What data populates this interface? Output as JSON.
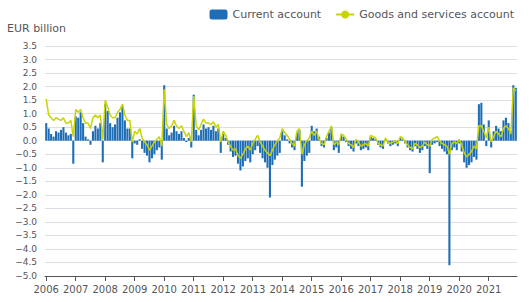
{
  "chart_data": {
    "type": "bar",
    "ylabel": "EUR billion",
    "categories": [
      "2006",
      null,
      null,
      null,
      null,
      null,
      null,
      null,
      null,
      null,
      null,
      null,
      "2007",
      null,
      null,
      null,
      null,
      null,
      null,
      null,
      null,
      null,
      null,
      null,
      "2008",
      null,
      null,
      null,
      null,
      null,
      null,
      null,
      null,
      null,
      null,
      null,
      "2009",
      null,
      null,
      null,
      null,
      null,
      null,
      null,
      null,
      null,
      null,
      null,
      "2010",
      null,
      null,
      null,
      null,
      null,
      null,
      null,
      null,
      null,
      null,
      null,
      "2011",
      null,
      null,
      null,
      null,
      null,
      null,
      null,
      null,
      null,
      null,
      null,
      "2012",
      null,
      null,
      null,
      null,
      null,
      null,
      null,
      null,
      null,
      null,
      null,
      "2013",
      null,
      null,
      null,
      null,
      null,
      null,
      null,
      null,
      null,
      null,
      null,
      "2014",
      null,
      null,
      null,
      null,
      null,
      null,
      null,
      null,
      null,
      null,
      null,
      "2015",
      null,
      null,
      null,
      null,
      null,
      null,
      null,
      null,
      null,
      null,
      null,
      "2016",
      null,
      null,
      null,
      null,
      null,
      null,
      null,
      null,
      null,
      null,
      null,
      "2017",
      null,
      null,
      null,
      null,
      null,
      null,
      null,
      null,
      null,
      null,
      null,
      "2018",
      null,
      null,
      null,
      null,
      null,
      null,
      null,
      null,
      null,
      null,
      null,
      "2019",
      null,
      null,
      null,
      null,
      null,
      null,
      null,
      null,
      null,
      null,
      null,
      "2020",
      null,
      null,
      null,
      null,
      null,
      null,
      null,
      null,
      null,
      null,
      null,
      "2021",
      null,
      null,
      null,
      null,
      null,
      null,
      null,
      null,
      null,
      null,
      null
    ],
    "series": [
      {
        "name": "Current account",
        "type": "bar",
        "color": "#1f6eb5",
        "values": [
          0.65,
          0.45,
          0.25,
          0.15,
          0.35,
          0.3,
          0.4,
          0.5,
          0.3,
          0.2,
          0.25,
          -0.85,
          0.9,
          0.85,
          1.05,
          0.65,
          0.15,
          0.05,
          -0.15,
          0.35,
          0.55,
          0.45,
          0.65,
          -0.8,
          1.35,
          1.1,
          0.65,
          0.5,
          0.6,
          0.85,
          1.05,
          1.3,
          0.75,
          0.45,
          0.45,
          -0.65,
          -0.1,
          -0.15,
          0.05,
          -0.3,
          -0.45,
          -0.55,
          -0.8,
          -0.65,
          -0.5,
          -0.35,
          -0.25,
          -0.7,
          2.05,
          0.45,
          0.2,
          0.3,
          0.55,
          0.35,
          0.25,
          0.35,
          0.1,
          -0.05,
          0.1,
          -0.25,
          1.7,
          0.4,
          0.2,
          0.4,
          0.6,
          0.45,
          0.5,
          0.4,
          0.55,
          0.35,
          0.45,
          -0.45,
          0.25,
          0.1,
          -0.15,
          -0.4,
          -0.6,
          -0.55,
          -0.85,
          -1.1,
          -0.95,
          -0.75,
          -0.65,
          -0.8,
          -0.5,
          -0.35,
          -0.2,
          -0.45,
          -0.65,
          -0.8,
          -1.0,
          -2.1,
          -0.9,
          -0.7,
          -0.55,
          -0.45,
          0.35,
          0.2,
          0.05,
          -0.1,
          -0.25,
          -0.35,
          0.3,
          0.4,
          -1.7,
          -0.75,
          -0.55,
          -0.45,
          0.55,
          0.35,
          0.45,
          0.15,
          -0.2,
          -0.25,
          0.1,
          0.3,
          0.5,
          -0.35,
          -0.25,
          -0.45,
          0.2,
          0.15,
          -0.05,
          -0.2,
          -0.3,
          -0.4,
          -0.1,
          -0.2,
          -0.35,
          -0.3,
          -0.25,
          -0.35,
          0.15,
          0.1,
          0.05,
          -0.15,
          -0.25,
          -0.3,
          0.05,
          -0.1,
          -0.2,
          -0.15,
          -0.1,
          -0.2,
          0.1,
          0.05,
          -0.1,
          -0.25,
          -0.35,
          -0.4,
          -0.2,
          -0.3,
          -0.45,
          -0.35,
          -0.2,
          -0.3,
          -1.2,
          -0.15,
          -0.1,
          -0.05,
          -0.2,
          -0.3,
          -0.4,
          -0.5,
          -4.6,
          -0.35,
          -0.25,
          -0.35,
          -0.1,
          -0.4,
          -0.8,
          -1.0,
          -0.9,
          -0.8,
          -0.6,
          -0.7,
          1.35,
          1.4,
          0.6,
          -0.2,
          0.75,
          -0.25,
          0.35,
          0.55,
          0.45,
          0.35,
          0.75,
          0.85,
          0.65,
          0.35,
          2.05,
          1.95
        ]
      },
      {
        "name": "Goods and services account",
        "type": "line",
        "color": "#c8d400",
        "values": [
          1.55,
          0.95,
          0.85,
          0.75,
          0.85,
          0.8,
          0.75,
          0.85,
          0.65,
          0.65,
          0.75,
          0.15,
          1.15,
          1.05,
          1.15,
          0.85,
          0.65,
          0.65,
          0.45,
          0.85,
          0.95,
          0.85,
          0.95,
          0.05,
          1.5,
          1.25,
          0.95,
          0.85,
          0.85,
          1.05,
          1.15,
          1.35,
          0.95,
          0.75,
          0.75,
          -0.05,
          0.35,
          0.25,
          0.45,
          0.1,
          -0.05,
          -0.15,
          -0.35,
          -0.2,
          -0.05,
          0.05,
          0.15,
          -0.2,
          1.9,
          0.6,
          0.45,
          0.55,
          0.75,
          0.55,
          0.45,
          0.55,
          0.35,
          0.15,
          0.3,
          -0.05,
          1.65,
          0.55,
          0.4,
          0.6,
          0.8,
          0.65,
          0.65,
          0.6,
          0.7,
          0.5,
          0.6,
          -0.05,
          0.35,
          0.2,
          -0.05,
          -0.2,
          -0.35,
          -0.3,
          -0.55,
          -0.65,
          -0.5,
          -0.3,
          -0.2,
          -0.35,
          -0.1,
          0.05,
          0.2,
          -0.05,
          -0.2,
          -0.35,
          -0.45,
          -0.55,
          -0.35,
          -0.15,
          0.0,
          0.1,
          0.45,
          0.3,
          0.2,
          0.05,
          -0.1,
          -0.2,
          0.35,
          0.45,
          -0.5,
          -0.15,
          0.0,
          0.1,
          0.35,
          0.2,
          0.35,
          0.05,
          -0.1,
          -0.15,
          0.15,
          0.35,
          0.55,
          -0.15,
          -0.05,
          -0.15,
          0.25,
          0.2,
          0.05,
          -0.1,
          -0.15,
          -0.25,
          0.05,
          -0.05,
          -0.2,
          -0.15,
          -0.1,
          -0.2,
          0.2,
          0.15,
          0.1,
          -0.1,
          -0.15,
          -0.2,
          0.1,
          -0.05,
          -0.1,
          -0.05,
          0.0,
          -0.1,
          0.15,
          0.1,
          -0.05,
          -0.15,
          -0.25,
          -0.3,
          -0.1,
          -0.15,
          -0.25,
          -0.2,
          -0.05,
          -0.15,
          -0.2,
          0.05,
          0.1,
          0.15,
          0.0,
          -0.1,
          -0.15,
          -0.2,
          -0.5,
          -0.1,
          -0.05,
          -0.1,
          0.05,
          -0.15,
          -0.45,
          -0.6,
          -0.5,
          -0.4,
          -0.2,
          -0.3,
          0.55,
          0.55,
          0.35,
          0.1,
          0.5,
          -0.05,
          0.15,
          0.35,
          0.25,
          0.15,
          0.45,
          0.55,
          0.45,
          0.25,
          1.95,
          1.85
        ]
      }
    ],
    "ylim": [
      -5.0,
      3.5
    ],
    "yticks": [
      {
        "value": -5.0,
        "label": "−5.0"
      },
      {
        "value": -4.5,
        "label": "−4.5"
      },
      {
        "value": -4.0,
        "label": "−4.0"
      },
      {
        "value": -3.5,
        "label": "−3.5"
      },
      {
        "value": -3.0,
        "label": "−3.0"
      },
      {
        "value": -2.5,
        "label": "−2.5"
      },
      {
        "value": -2.0,
        "label": "−2.0"
      },
      {
        "value": -1.5,
        "label": "−1.5"
      },
      {
        "value": -1.0,
        "label": "−1.0"
      },
      {
        "value": -0.5,
        "label": "−0.5"
      },
      {
        "value": 0.0,
        "label": "0.0"
      },
      {
        "value": 0.5,
        "label": "0.5"
      },
      {
        "value": 1.0,
        "label": "1.0"
      },
      {
        "value": 1.5,
        "label": "1.5"
      },
      {
        "value": 2.0,
        "label": "2.0"
      },
      {
        "value": 2.5,
        "label": "2.5"
      },
      {
        "value": 3.0,
        "label": "3.0"
      },
      {
        "value": 3.5,
        "label": "3.5"
      }
    ],
    "grid": true,
    "legend": "upper right"
  }
}
